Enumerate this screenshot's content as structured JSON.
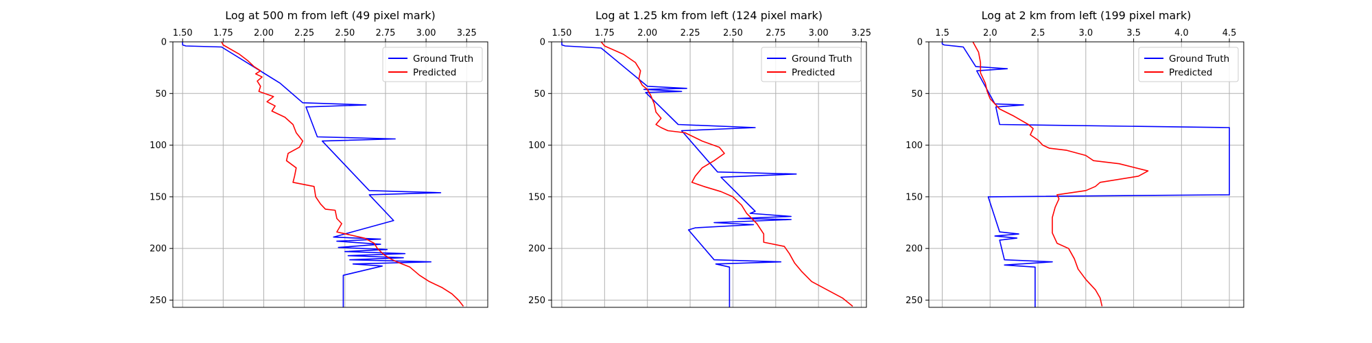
{
  "colors": {
    "ground_truth": "#0000ff",
    "predicted": "#ff0000",
    "grid": "#b0b0b0",
    "axis": "#000000"
  },
  "chart_data": [
    {
      "type": "line",
      "title": "Log at 500 m from left (49 pixel mark)",
      "xlim": [
        1.44,
        3.38
      ],
      "xticks": [
        "1.50",
        "1.75",
        "2.00",
        "2.25",
        "2.50",
        "2.75",
        "3.00",
        "3.25"
      ],
      "ylim": [
        257,
        0
      ],
      "yticks": [
        "0",
        "50",
        "100",
        "150",
        "200",
        "250"
      ],
      "grid": true,
      "legend_position": "top-right",
      "series": [
        {
          "name": "Ground Truth",
          "color": "#0000ff",
          "points": [
            [
              1.5,
              0
            ],
            [
              1.5,
              3
            ],
            [
              1.52,
              4
            ],
            [
              1.74,
              5
            ],
            [
              2.1,
              40
            ],
            [
              2.24,
              59
            ],
            [
              2.63,
              61
            ],
            [
              2.26,
              63
            ],
            [
              2.33,
              92
            ],
            [
              2.81,
              94
            ],
            [
              2.36,
              96
            ],
            [
              2.65,
              144
            ],
            [
              3.09,
              146
            ],
            [
              2.65,
              148
            ],
            [
              2.8,
              173
            ],
            [
              2.43,
              189
            ],
            [
              2.72,
              191
            ],
            [
              2.45,
              193
            ],
            [
              2.72,
              196
            ],
            [
              2.46,
              199
            ],
            [
              2.76,
              201
            ],
            [
              2.5,
              203
            ],
            [
              2.87,
              205
            ],
            [
              2.52,
              207
            ],
            [
              2.86,
              209
            ],
            [
              2.53,
              211
            ],
            [
              3.03,
              213
            ],
            [
              2.55,
              215
            ],
            [
              2.73,
              217
            ],
            [
              2.49,
              226
            ],
            [
              2.49,
              257
            ]
          ]
        },
        {
          "name": "Predicted",
          "color": "#ff0000",
          "points": [
            [
              1.74,
              0
            ],
            [
              1.75,
              3
            ],
            [
              1.85,
              12
            ],
            [
              1.9,
              18
            ],
            [
              1.94,
              24
            ],
            [
              1.98,
              28
            ],
            [
              1.95,
              31
            ],
            [
              1.99,
              34
            ],
            [
              1.96,
              38
            ],
            [
              1.98,
              43
            ],
            [
              1.97,
              48
            ],
            [
              2.06,
              53
            ],
            [
              2.02,
              58
            ],
            [
              2.07,
              62
            ],
            [
              2.05,
              67
            ],
            [
              2.13,
              73
            ],
            [
              2.18,
              80
            ],
            [
              2.2,
              88
            ],
            [
              2.24,
              96
            ],
            [
              2.22,
              102
            ],
            [
              2.15,
              108
            ],
            [
              2.14,
              115
            ],
            [
              2.2,
              122
            ],
            [
              2.19,
              130
            ],
            [
              2.18,
              136
            ],
            [
              2.31,
              140
            ],
            [
              2.32,
              150
            ],
            [
              2.35,
              157
            ],
            [
              2.38,
              162
            ],
            [
              2.44,
              163
            ],
            [
              2.45,
              171
            ],
            [
              2.48,
              176
            ],
            [
              2.45,
              184
            ],
            [
              2.62,
              190
            ],
            [
              2.68,
              195
            ],
            [
              2.7,
              200
            ],
            [
              2.74,
              206
            ],
            [
              2.78,
              210
            ],
            [
              2.82,
              213
            ],
            [
              2.9,
              218
            ],
            [
              2.96,
              226
            ],
            [
              3.02,
              232
            ],
            [
              3.1,
              238
            ],
            [
              3.16,
              244
            ],
            [
              3.2,
              250
            ],
            [
              3.23,
              256
            ]
          ]
        }
      ]
    },
    {
      "type": "line",
      "title": "Log at 1.25 km from left (124 pixel mark)",
      "xlim": [
        1.44,
        3.28
      ],
      "xticks": [
        "1.50",
        "1.75",
        "2.00",
        "2.25",
        "2.50",
        "2.75",
        "3.00",
        "3.25"
      ],
      "ylim": [
        257,
        0
      ],
      "yticks": [
        "0",
        "50",
        "100",
        "150",
        "200",
        "250"
      ],
      "grid": true,
      "legend_position": "top-right",
      "series": [
        {
          "name": "Ground Truth",
          "color": "#0000ff",
          "points": [
            [
              1.5,
              0
            ],
            [
              1.5,
              3
            ],
            [
              1.52,
              4
            ],
            [
              1.73,
              6
            ],
            [
              2.0,
              43
            ],
            [
              2.23,
              45
            ],
            [
              1.98,
              46
            ],
            [
              2.2,
              48
            ],
            [
              1.99,
              49
            ],
            [
              2.18,
              80
            ],
            [
              2.63,
              83
            ],
            [
              2.2,
              86
            ],
            [
              2.41,
              126
            ],
            [
              2.87,
              128
            ],
            [
              2.43,
              131
            ],
            [
              2.63,
              164
            ],
            [
              2.6,
              166
            ],
            [
              2.84,
              169
            ],
            [
              2.53,
              171
            ],
            [
              2.84,
              172
            ],
            [
              2.39,
              175
            ],
            [
              2.62,
              177
            ],
            [
              2.28,
              180
            ],
            [
              2.24,
              182
            ],
            [
              2.39,
              211
            ],
            [
              2.78,
              213
            ],
            [
              2.4,
              215
            ],
            [
              2.48,
              218
            ],
            [
              2.48,
              257
            ]
          ]
        },
        {
          "name": "Predicted",
          "color": "#ff0000",
          "points": [
            [
              1.73,
              0
            ],
            [
              1.75,
              4
            ],
            [
              1.86,
              12
            ],
            [
              1.93,
              20
            ],
            [
              1.96,
              28
            ],
            [
              1.95,
              36
            ],
            [
              1.97,
              42
            ],
            [
              2.0,
              46
            ],
            [
              2.02,
              52
            ],
            [
              2.04,
              60
            ],
            [
              2.05,
              68
            ],
            [
              2.08,
              74
            ],
            [
              2.05,
              80
            ],
            [
              2.08,
              83
            ],
            [
              2.12,
              86
            ],
            [
              2.22,
              88
            ],
            [
              2.27,
              92
            ],
            [
              2.32,
              96
            ],
            [
              2.42,
              102
            ],
            [
              2.45,
              108
            ],
            [
              2.39,
              115
            ],
            [
              2.32,
              122
            ],
            [
              2.28,
              130
            ],
            [
              2.26,
              136
            ],
            [
              2.33,
              140
            ],
            [
              2.43,
              145
            ],
            [
              2.5,
              150
            ],
            [
              2.55,
              158
            ],
            [
              2.58,
              166
            ],
            [
              2.64,
              176
            ],
            [
              2.68,
              186
            ],
            [
              2.68,
              194
            ],
            [
              2.8,
              198
            ],
            [
              2.83,
              205
            ],
            [
              2.86,
              214
            ],
            [
              2.9,
              222
            ],
            [
              2.96,
              232
            ],
            [
              3.05,
              240
            ],
            [
              3.14,
              248
            ],
            [
              3.2,
              256
            ]
          ]
        }
      ]
    },
    {
      "type": "line",
      "title": "Log at 2 km from left (199 pixel mark)",
      "xlim": [
        1.36,
        4.65
      ],
      "xticks": [
        "1.5",
        "2.0",
        "2.5",
        "3.0",
        "3.5",
        "4.0",
        "4.5"
      ],
      "ylim": [
        257,
        0
      ],
      "yticks": [
        "0",
        "50",
        "100",
        "150",
        "200",
        "250"
      ],
      "grid": true,
      "legend_position": "top-right",
      "series": [
        {
          "name": "Ground Truth",
          "color": "#0000ff",
          "points": [
            [
              1.5,
              0
            ],
            [
              1.5,
              2
            ],
            [
              1.52,
              3
            ],
            [
              1.72,
              5
            ],
            [
              1.85,
              24
            ],
            [
              2.18,
              26
            ],
            [
              1.86,
              28
            ],
            [
              2.05,
              60
            ],
            [
              2.35,
              61
            ],
            [
              2.06,
              63
            ],
            [
              2.1,
              80
            ],
            [
              4.5,
              83
            ],
            [
              4.5,
              148
            ],
            [
              1.98,
              150
            ],
            [
              2.1,
              184
            ],
            [
              2.3,
              186
            ],
            [
              2.05,
              188
            ],
            [
              2.28,
              190
            ],
            [
              2.1,
              192
            ],
            [
              2.15,
              211
            ],
            [
              2.65,
              213
            ],
            [
              2.15,
              216
            ],
            [
              2.47,
              218
            ],
            [
              2.47,
              257
            ]
          ]
        },
        {
          "name": "Predicted",
          "color": "#ff0000",
          "points": [
            [
              1.82,
              0
            ],
            [
              1.88,
              10
            ],
            [
              1.9,
              20
            ],
            [
              1.9,
              30
            ],
            [
              1.95,
              40
            ],
            [
              1.97,
              48
            ],
            [
              2.0,
              55
            ],
            [
              2.1,
              65
            ],
            [
              2.25,
              72
            ],
            [
              2.4,
              80
            ],
            [
              2.45,
              84
            ],
            [
              2.42,
              90
            ],
            [
              2.5,
              95
            ],
            [
              2.55,
              100
            ],
            [
              2.62,
              103
            ],
            [
              2.8,
              105
            ],
            [
              3.0,
              110
            ],
            [
              3.08,
              115
            ],
            [
              3.35,
              118
            ],
            [
              3.65,
              125
            ],
            [
              3.55,
              130
            ],
            [
              3.15,
              136
            ],
            [
              3.1,
              140
            ],
            [
              3.0,
              144
            ],
            [
              2.7,
              148
            ],
            [
              2.72,
              152
            ],
            [
              2.68,
              160
            ],
            [
              2.65,
              170
            ],
            [
              2.65,
              185
            ],
            [
              2.7,
              195
            ],
            [
              2.82,
              200
            ],
            [
              2.88,
              210
            ],
            [
              2.92,
              220
            ],
            [
              3.0,
              230
            ],
            [
              3.1,
              240
            ],
            [
              3.15,
              248
            ],
            [
              3.17,
              256
            ]
          ]
        }
      ]
    }
  ]
}
